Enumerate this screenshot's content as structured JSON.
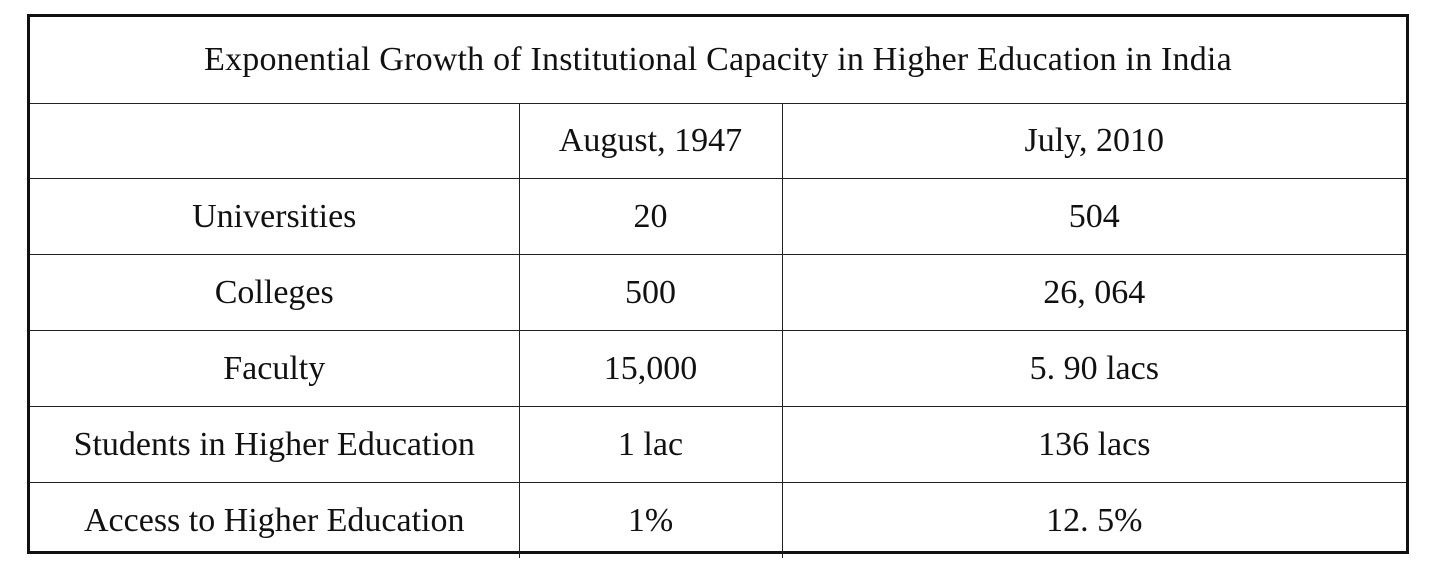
{
  "table": {
    "title": "Exponential Growth of Institutional Capacity in Higher Education in India",
    "columns": [
      "",
      "August, 1947",
      "July, 2010"
    ],
    "rows": [
      {
        "label": "Universities",
        "v1947": "20",
        "v2010": "504"
      },
      {
        "label": "Colleges",
        "v1947": "500",
        "v2010": "26, 064"
      },
      {
        "label": "Faculty",
        "v1947": "15,000",
        "v2010": "5. 90 lacs"
      },
      {
        "label": "Students in Higher Education",
        "v1947": "1 lac",
        "v2010": "136 lacs"
      },
      {
        "label": "Access to Higher Education",
        "v1947": "1%",
        "v2010": "12. 5%"
      }
    ]
  }
}
